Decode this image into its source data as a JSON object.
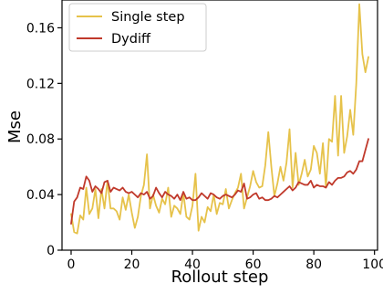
{
  "chart_data": {
    "type": "line",
    "title": "",
    "xlabel": "Rollout step",
    "ylabel": "Mse",
    "xlim": [
      -3,
      101
    ],
    "ylim": [
      0,
      0.18
    ],
    "xticks": [
      0,
      20,
      40,
      60,
      80,
      100
    ],
    "yticks": [
      0,
      0.04,
      0.08,
      0.12,
      0.16
    ],
    "xtick_labels": [
      "0",
      "20",
      "40",
      "60",
      "80",
      "100"
    ],
    "ytick_labels": [
      "0",
      "0.04",
      "0.08",
      "0.12",
      "0.16"
    ],
    "grid": false,
    "legend": {
      "position": "top-left",
      "entries": [
        "Single step",
        "Dydiff"
      ]
    },
    "series": [
      {
        "name": "Single step",
        "color": "#e6c24a",
        "x": [
          0,
          1,
          2,
          3,
          4,
          5,
          6,
          7,
          8,
          9,
          10,
          11,
          12,
          13,
          14,
          15,
          16,
          17,
          18,
          19,
          20,
          21,
          22,
          23,
          24,
          25,
          26,
          27,
          28,
          29,
          30,
          31,
          32,
          33,
          34,
          35,
          36,
          37,
          38,
          39,
          40,
          41,
          42,
          43,
          44,
          45,
          46,
          47,
          48,
          49,
          50,
          51,
          52,
          53,
          54,
          55,
          56,
          57,
          58,
          59,
          60,
          61,
          62,
          63,
          64,
          65,
          66,
          67,
          68,
          69,
          70,
          71,
          72,
          73,
          74,
          75,
          76,
          77,
          78,
          79,
          80,
          81,
          82,
          83,
          84,
          85,
          86,
          87,
          88,
          89,
          90,
          91,
          92,
          93,
          94,
          95,
          96,
          97,
          98
        ],
        "values": [
          0.026,
          0.013,
          0.012,
          0.025,
          0.022,
          0.045,
          0.026,
          0.03,
          0.044,
          0.023,
          0.044,
          0.03,
          0.05,
          0.03,
          0.03,
          0.028,
          0.022,
          0.038,
          0.029,
          0.04,
          0.027,
          0.016,
          0.024,
          0.039,
          0.047,
          0.069,
          0.03,
          0.04,
          0.032,
          0.027,
          0.037,
          0.033,
          0.045,
          0.024,
          0.032,
          0.03,
          0.026,
          0.041,
          0.024,
          0.022,
          0.032,
          0.055,
          0.014,
          0.024,
          0.02,
          0.031,
          0.028,
          0.04,
          0.026,
          0.034,
          0.033,
          0.044,
          0.03,
          0.036,
          0.041,
          0.045,
          0.055,
          0.03,
          0.038,
          0.046,
          0.057,
          0.049,
          0.045,
          0.046,
          0.061,
          0.085,
          0.06,
          0.039,
          0.048,
          0.06,
          0.05,
          0.063,
          0.087,
          0.045,
          0.07,
          0.047,
          0.055,
          0.065,
          0.053,
          0.058,
          0.075,
          0.07,
          0.055,
          0.077,
          0.045,
          0.08,
          0.078,
          0.111,
          0.068,
          0.111,
          0.07,
          0.082,
          0.101,
          0.083,
          0.12,
          0.177,
          0.141,
          0.128,
          0.139
        ]
      },
      {
        "name": "Dydiff",
        "color": "#c0392b",
        "x": [
          0,
          1,
          2,
          3,
          4,
          5,
          6,
          7,
          8,
          9,
          10,
          11,
          12,
          13,
          14,
          15,
          16,
          17,
          18,
          19,
          20,
          21,
          22,
          23,
          24,
          25,
          26,
          27,
          28,
          29,
          30,
          31,
          32,
          33,
          34,
          35,
          36,
          37,
          38,
          39,
          40,
          41,
          42,
          43,
          44,
          45,
          46,
          47,
          48,
          49,
          50,
          51,
          52,
          53,
          54,
          55,
          56,
          57,
          58,
          59,
          60,
          61,
          62,
          63,
          64,
          65,
          66,
          67,
          68,
          69,
          70,
          71,
          72,
          73,
          74,
          75,
          76,
          77,
          78,
          79,
          80,
          81,
          82,
          83,
          84,
          85,
          86,
          87,
          88,
          89,
          90,
          91,
          92,
          93,
          94,
          95,
          96,
          97,
          98
        ],
        "values": [
          0.019,
          0.035,
          0.038,
          0.045,
          0.044,
          0.053,
          0.05,
          0.042,
          0.046,
          0.044,
          0.041,
          0.049,
          0.05,
          0.042,
          0.045,
          0.044,
          0.043,
          0.045,
          0.042,
          0.041,
          0.042,
          0.04,
          0.038,
          0.041,
          0.04,
          0.042,
          0.037,
          0.039,
          0.045,
          0.041,
          0.038,
          0.042,
          0.04,
          0.039,
          0.037,
          0.04,
          0.036,
          0.042,
          0.037,
          0.038,
          0.036,
          0.036,
          0.038,
          0.041,
          0.039,
          0.037,
          0.041,
          0.04,
          0.038,
          0.037,
          0.039,
          0.04,
          0.039,
          0.038,
          0.04,
          0.043,
          0.042,
          0.048,
          0.037,
          0.038,
          0.04,
          0.041,
          0.037,
          0.038,
          0.036,
          0.036,
          0.037,
          0.039,
          0.038,
          0.04,
          0.042,
          0.044,
          0.046,
          0.043,
          0.045,
          0.049,
          0.048,
          0.047,
          0.047,
          0.05,
          0.045,
          0.047,
          0.046,
          0.046,
          0.045,
          0.049,
          0.047,
          0.05,
          0.052,
          0.052,
          0.053,
          0.056,
          0.057,
          0.055,
          0.058,
          0.064,
          0.064,
          0.072,
          0.08
        ]
      }
    ]
  }
}
